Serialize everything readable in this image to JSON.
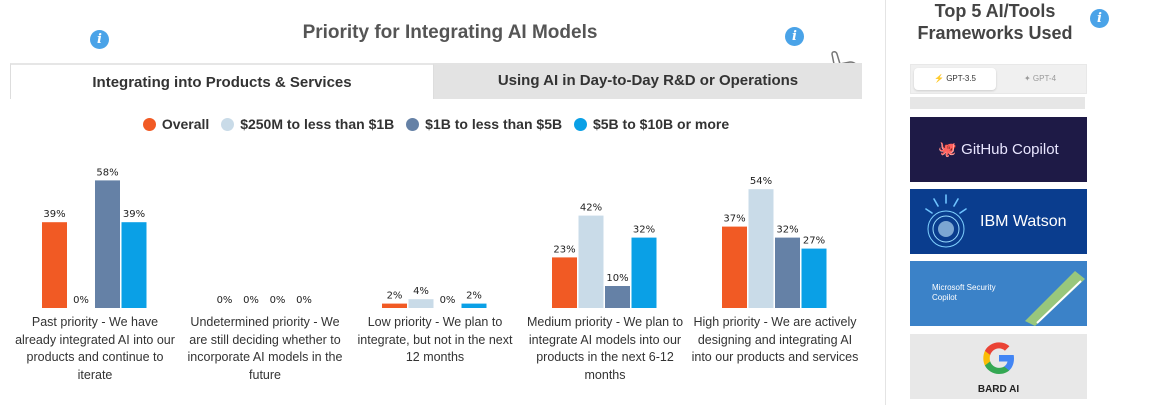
{
  "title": "Priority for Integrating AI Models",
  "tabs": [
    {
      "label": "Integrating into Products & Services",
      "active": true
    },
    {
      "label": "Using AI in Day-to-Day R&D or Operations",
      "active": false
    }
  ],
  "chart_data": {
    "type": "bar",
    "categories": [
      "Past priority - We have already integrated AI into our products and continue to iterate",
      "Undetermined priority - We are still deciding whether to incorporate AI models in the future",
      "Low priority - We plan to integrate, but not in the next 12 months",
      "Medium priority - We plan to integrate AI models into our products in the next 6-12 months",
      "High priority - We are actively designing and integrating AI into our products and services"
    ],
    "series": [
      {
        "name": "Overall",
        "color": "#f15a24",
        "values": [
          39,
          0,
          2,
          23,
          37
        ]
      },
      {
        "name": "$250M to less than $1B",
        "color": "#c9dbe8",
        "values": [
          0,
          0,
          4,
          42,
          54
        ]
      },
      {
        "name": "$1B to less than $5B",
        "color": "#6581a6",
        "values": [
          58,
          0,
          0,
          10,
          32
        ]
      },
      {
        "name": "$5B to $10B or more",
        "color": "#0aa0e6",
        "values": [
          39,
          0,
          2,
          32,
          27
        ]
      }
    ],
    "value_suffix": "%",
    "ylim": [
      0,
      60
    ],
    "legend": "top-center",
    "grid": false
  },
  "sidebar": {
    "title_line1": "Top 5 AI/Tools",
    "title_line2": "Frameworks Used",
    "gpt_tabs": [
      "GPT-3.5",
      "GPT-4"
    ],
    "tools": [
      "GitHub Copilot",
      "IBM Watson",
      "Microsoft Security Copilot",
      "BARD AI"
    ]
  },
  "icons": [
    "info-icon",
    "hand-pointer-icon",
    "bolt-icon",
    "sparkle-icon",
    "github-icon",
    "google-g-icon"
  ]
}
